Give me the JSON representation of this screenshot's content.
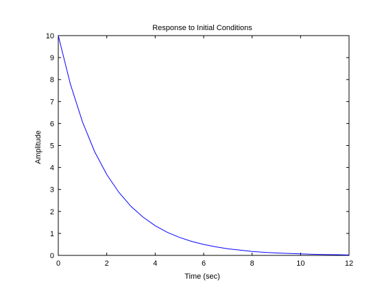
{
  "chart_data": {
    "type": "line",
    "title": "Response to Initial Conditions",
    "xlabel": "Time (sec)",
    "ylabel": "Amplitude",
    "xlim": [
      0,
      12
    ],
    "ylim": [
      0,
      10
    ],
    "xticks": [
      0,
      2,
      4,
      6,
      8,
      10,
      12
    ],
    "yticks": [
      0,
      1,
      2,
      3,
      4,
      5,
      6,
      7,
      8,
      9,
      10
    ],
    "grid": false,
    "legend": "none",
    "zero_line": true,
    "series": [
      {
        "color": "#0000ff",
        "x": [
          0,
          0.5,
          1,
          1.5,
          2,
          2.5,
          3,
          3.5,
          4,
          4.5,
          5,
          5.5,
          6,
          6.5,
          7,
          7.5,
          8,
          8.5,
          9,
          9.5,
          10,
          10.5,
          11,
          11.5,
          12
        ],
        "y": [
          10,
          7.79,
          6.07,
          4.72,
          3.68,
          2.87,
          2.23,
          1.74,
          1.35,
          1.05,
          0.82,
          0.64,
          0.5,
          0.39,
          0.3,
          0.24,
          0.18,
          0.14,
          0.11,
          0.09,
          0.07,
          0.05,
          0.04,
          0.03,
          0.02
        ]
      }
    ]
  }
}
